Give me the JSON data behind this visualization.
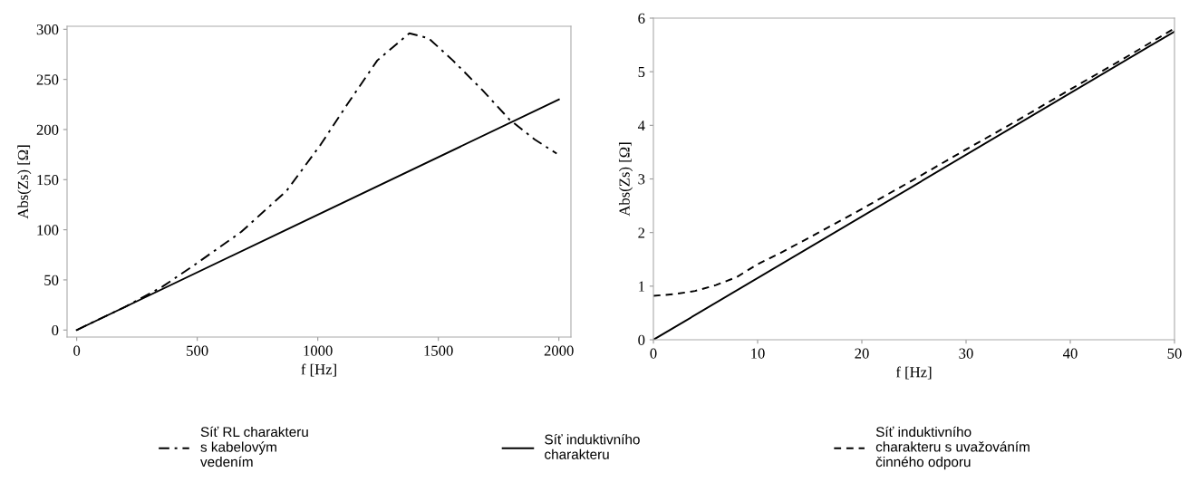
{
  "chart_data": [
    {
      "type": "line",
      "xlabel": "f [Hz]",
      "ylabel": "Abs(Zs) [Ω]",
      "xlim": [
        -40,
        2050
      ],
      "ylim": [
        -7,
        303
      ],
      "xticks": [
        0,
        500,
        1000,
        1500,
        2000
      ],
      "yticks": [
        0,
        50,
        100,
        150,
        200,
        250,
        300
      ],
      "grid": false,
      "legend": "bottom",
      "series": [
        {
          "name": "Síť RL charakteru\ns kabelovým\nvedením",
          "color": "#000000",
          "line_style": "dashdot",
          "x": [
            0,
            200,
            354,
            495,
            683,
            871,
            1012,
            1122,
            1247,
            1380,
            1460,
            1560,
            1680,
            1795,
            1900,
            1991
          ],
          "values": [
            0,
            23,
            43,
            66,
            98,
            139,
            185,
            225,
            269,
            296,
            291,
            269,
            240,
            210,
            190,
            176
          ]
        },
        {
          "name": "Síť induktivního\ncharakteru",
          "color": "#000000",
          "line_style": "solid",
          "x": [
            0,
            2000
          ],
          "values": [
            0,
            230
          ]
        }
      ]
    },
    {
      "type": "line",
      "xlabel": "f [Hz]",
      "ylabel": "Abs(Zs) [Ω]",
      "xlim": [
        0,
        50
      ],
      "ylim": [
        0,
        6
      ],
      "xticks": [
        0,
        10,
        20,
        30,
        40,
        50
      ],
      "yticks": [
        0,
        1,
        2,
        3,
        4,
        5,
        6
      ],
      "grid": false,
      "legend": "bottom",
      "series": [
        {
          "name": "Síť induktivního\ncharakteru",
          "color": "#000000",
          "line_style": "solid",
          "x": [
            0,
            50
          ],
          "values": [
            0,
            5.75
          ]
        },
        {
          "name": "Síť induktivního\ncharakteru s uvažováním\nčinného odporu",
          "color": "#000000",
          "line_style": "dashed",
          "x": [
            0,
            2,
            4,
            6,
            8,
            10,
            12,
            15,
            20,
            25,
            30,
            35,
            40,
            45,
            50
          ],
          "values": [
            0.82,
            0.85,
            0.91,
            1.02,
            1.17,
            1.41,
            1.6,
            1.91,
            2.44,
            2.99,
            3.55,
            4.1,
            4.67,
            5.23,
            5.81
          ]
        }
      ]
    }
  ]
}
